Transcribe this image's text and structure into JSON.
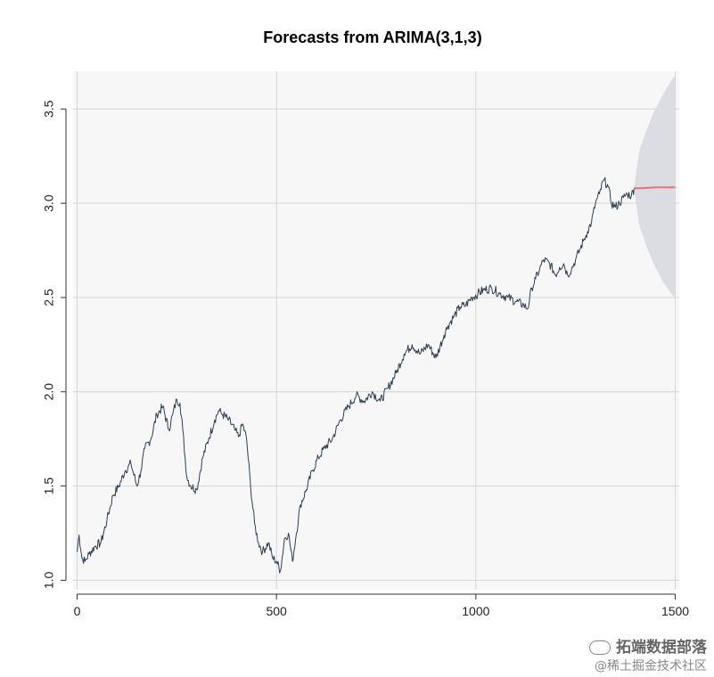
{
  "chart_data": {
    "type": "line",
    "title": "Forecasts from ARIMA(3,1,3)",
    "xlabel": "",
    "ylabel": "",
    "xlim": [
      -10,
      1510
    ],
    "ylim": [
      0.95,
      3.7
    ],
    "xticks": [
      0,
      500,
      1000,
      1500
    ],
    "yticks": [
      1.0,
      1.5,
      2.0,
      2.5,
      3.0,
      3.5
    ],
    "xtick_labels": [
      "0",
      "500",
      "1000",
      "1500"
    ],
    "ytick_labels": [
      "1.0",
      "1.5",
      "2.0",
      "2.5",
      "3.0",
      "3.5"
    ],
    "grid": true,
    "series": [
      {
        "role": "observed",
        "color": "#2f3f4f",
        "x": [
          0,
          5,
          12,
          20,
          30,
          45,
          60,
          75,
          90,
          105,
          120,
          135,
          150,
          160,
          170,
          185,
          200,
          215,
          230,
          240,
          250,
          258,
          265,
          275,
          285,
          300,
          315,
          330,
          345,
          355,
          365,
          380,
          395,
          405,
          415,
          425,
          435,
          445,
          455,
          465,
          480,
          490,
          500,
          510,
          520,
          530,
          540,
          550,
          560,
          575,
          590,
          605,
          620,
          640,
          660,
          680,
          700,
          720,
          740,
          760,
          780,
          800,
          820,
          840,
          860,
          880,
          900,
          920,
          930,
          945,
          960,
          975,
          990,
          1005,
          1020,
          1040,
          1060,
          1080,
          1100,
          1120,
          1130,
          1140,
          1150,
          1160,
          1170,
          1185,
          1200,
          1210,
          1220,
          1230,
          1240,
          1250,
          1260,
          1270,
          1280,
          1290,
          1300,
          1310,
          1320,
          1330,
          1340,
          1350,
          1360,
          1370,
          1380,
          1390,
          1397
        ],
        "y": [
          1.15,
          1.24,
          1.12,
          1.1,
          1.14,
          1.18,
          1.2,
          1.32,
          1.45,
          1.5,
          1.58,
          1.62,
          1.5,
          1.58,
          1.7,
          1.75,
          1.88,
          1.92,
          1.8,
          1.88,
          1.96,
          1.94,
          1.8,
          1.55,
          1.5,
          1.48,
          1.65,
          1.75,
          1.85,
          1.9,
          1.88,
          1.85,
          1.8,
          1.76,
          1.83,
          1.75,
          1.5,
          1.3,
          1.2,
          1.15,
          1.2,
          1.12,
          1.1,
          1.05,
          1.22,
          1.25,
          1.1,
          1.25,
          1.4,
          1.48,
          1.58,
          1.65,
          1.7,
          1.75,
          1.85,
          1.92,
          1.98,
          1.95,
          2.0,
          1.95,
          2.02,
          2.1,
          2.2,
          2.25,
          2.2,
          2.25,
          2.18,
          2.3,
          2.35,
          2.4,
          2.45,
          2.46,
          2.5,
          2.52,
          2.54,
          2.55,
          2.52,
          2.5,
          2.48,
          2.46,
          2.44,
          2.55,
          2.6,
          2.65,
          2.7,
          2.68,
          2.62,
          2.66,
          2.68,
          2.62,
          2.65,
          2.7,
          2.75,
          2.8,
          2.85,
          2.9,
          3.0,
          3.05,
          3.12,
          3.1,
          3.0,
          2.98,
          3.0,
          3.03,
          3.05,
          3.04,
          3.08
        ]
      },
      {
        "role": "forecast",
        "color": "#e8737a",
        "x": [
          1397,
          1420,
          1450,
          1480,
          1500
        ],
        "y": [
          3.08,
          3.08,
          3.085,
          3.085,
          3.085
        ]
      }
    ],
    "forecast_interval": {
      "color": "#dcdde3",
      "x": [
        1397,
        1410,
        1430,
        1450,
        1470,
        1490,
        1500
      ],
      "upper": [
        3.09,
        3.28,
        3.4,
        3.5,
        3.58,
        3.65,
        3.68
      ],
      "lower": [
        3.07,
        2.88,
        2.76,
        2.66,
        2.58,
        2.52,
        2.5
      ]
    }
  },
  "watermark": {
    "line1": "拓端数据部落",
    "line2": "@稀土掘金技术社区"
  }
}
